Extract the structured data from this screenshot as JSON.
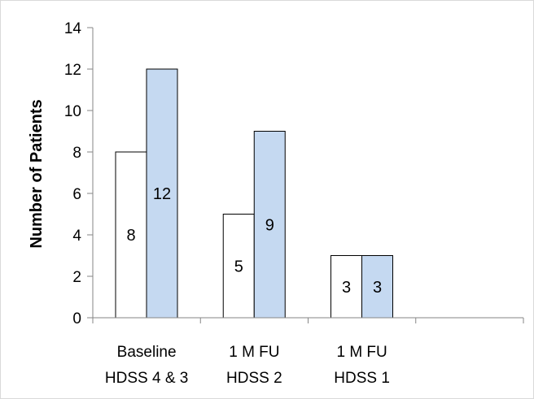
{
  "chart_data": {
    "type": "bar",
    "title": "",
    "xlabel": "",
    "ylabel": "Number of Patients",
    "ylim": [
      0,
      14
    ],
    "ytick_step": 2,
    "yticks": [
      "0",
      "2",
      "4",
      "6",
      "8",
      "10",
      "12",
      "14"
    ],
    "grid": false,
    "legend": "none",
    "categories": [
      [
        "Baseline",
        "HDSS 4 & 3"
      ],
      [
        "1 M FU",
        "HDSS 2"
      ],
      [
        "1 M FU",
        "HDSS 1"
      ],
      [
        "",
        ""
      ]
    ],
    "series": [
      {
        "color": "#ffffff",
        "values": [
          8,
          5,
          3,
          null
        ],
        "labels": [
          "8",
          "5",
          "3",
          ""
        ]
      },
      {
        "color": "#c5d9f1",
        "values": [
          12,
          9,
          3,
          null
        ],
        "labels": [
          "12",
          "9",
          "3",
          ""
        ]
      }
    ]
  }
}
